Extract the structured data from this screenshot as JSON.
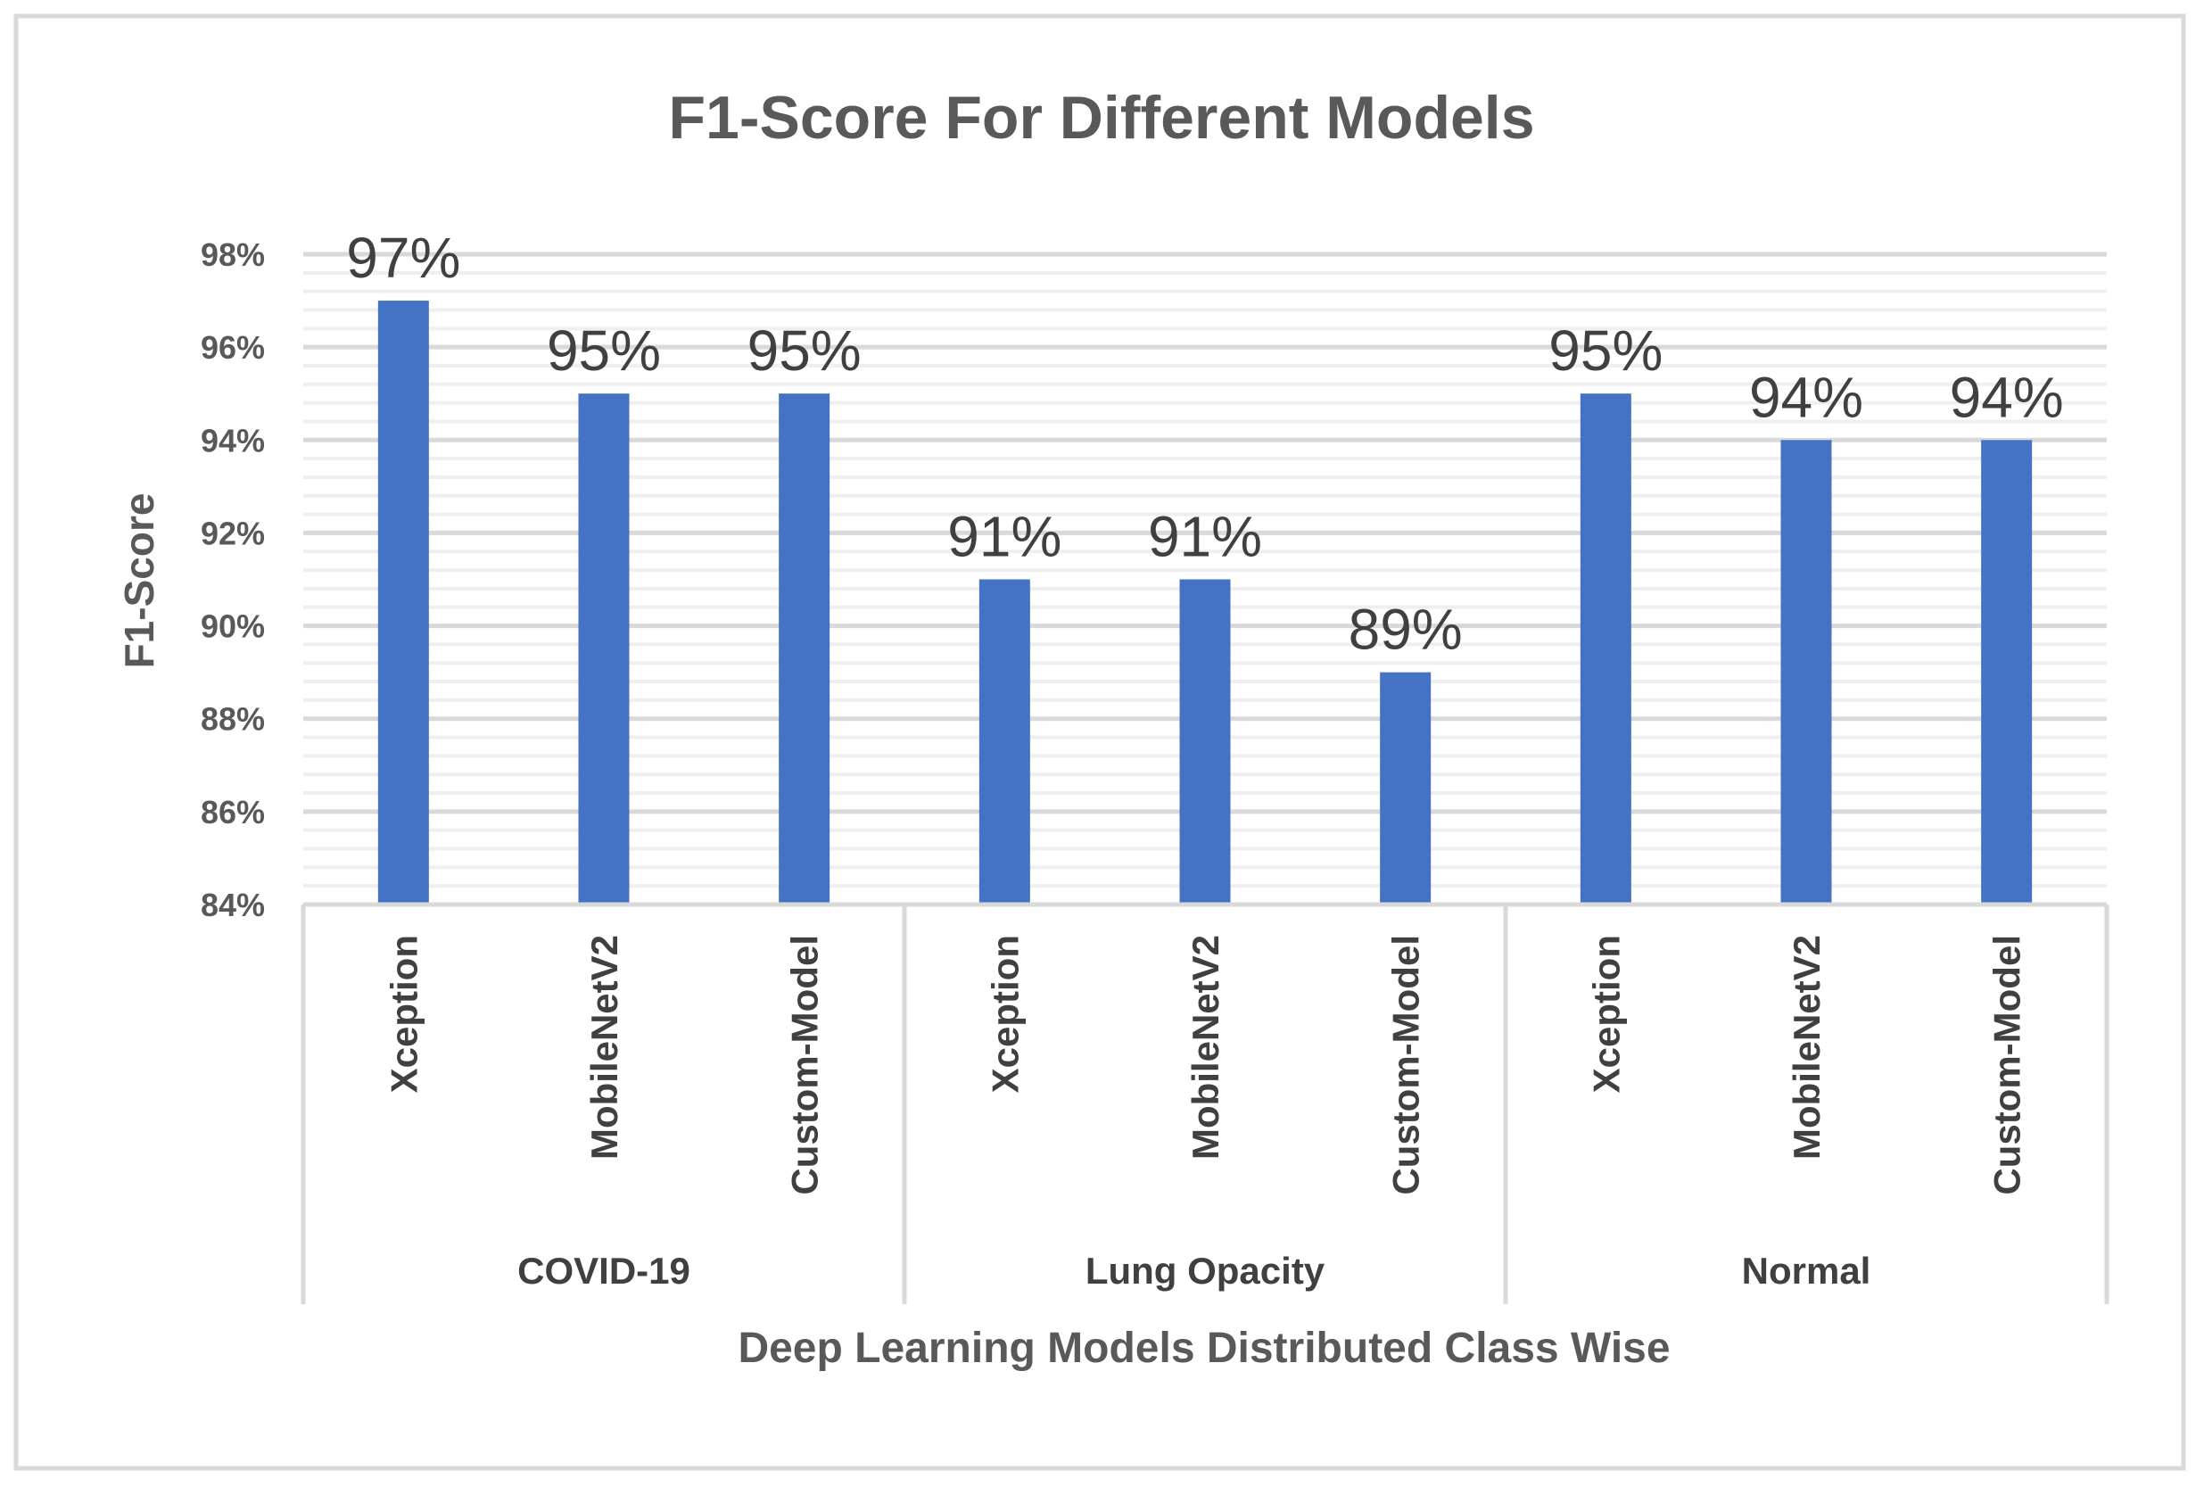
{
  "colors": {
    "bar": "#4472C4",
    "major_grid": "#d9d9d9",
    "minor_grid": "#efefef",
    "axis_line": "#d9d9d9",
    "frame": "#d9d9d9"
  },
  "chart_data": {
    "type": "bar",
    "title": "F1-Score For Different Models",
    "xlabel": "Deep Learning Models Distributed Class Wise",
    "ylabel": "F1-Score",
    "ylim": [
      84,
      98
    ],
    "yticks": [
      {
        "value": 84,
        "label": "84%"
      },
      {
        "value": 86,
        "label": "86%"
      },
      {
        "value": 88,
        "label": "88%"
      },
      {
        "value": 90,
        "label": "90%"
      },
      {
        "value": 92,
        "label": "92%"
      },
      {
        "value": 94,
        "label": "94%"
      },
      {
        "value": 96,
        "label": "96%"
      },
      {
        "value": 98,
        "label": "98%"
      }
    ],
    "grid": true,
    "groups": [
      {
        "name": "COVID-19",
        "bars": [
          {
            "category": "Xception",
            "value": 97,
            "label": "97%"
          },
          {
            "category": "MobileNetV2",
            "value": 95,
            "label": "95%"
          },
          {
            "category": "Custom-Model",
            "value": 95,
            "label": "95%"
          }
        ]
      },
      {
        "name": "Lung Opacity",
        "bars": [
          {
            "category": "Xception",
            "value": 91,
            "label": "91%"
          },
          {
            "category": "MobileNetV2",
            "value": 91,
            "label": "91%"
          },
          {
            "category": "Custom-Model",
            "value": 89,
            "label": "89%"
          }
        ]
      },
      {
        "name": "Normal",
        "bars": [
          {
            "category": "Xception",
            "value": 95,
            "label": "95%"
          },
          {
            "category": "MobileNetV2",
            "value": 94,
            "label": "94%"
          },
          {
            "category": "Custom-Model",
            "value": 94,
            "label": "94%"
          }
        ]
      }
    ]
  }
}
